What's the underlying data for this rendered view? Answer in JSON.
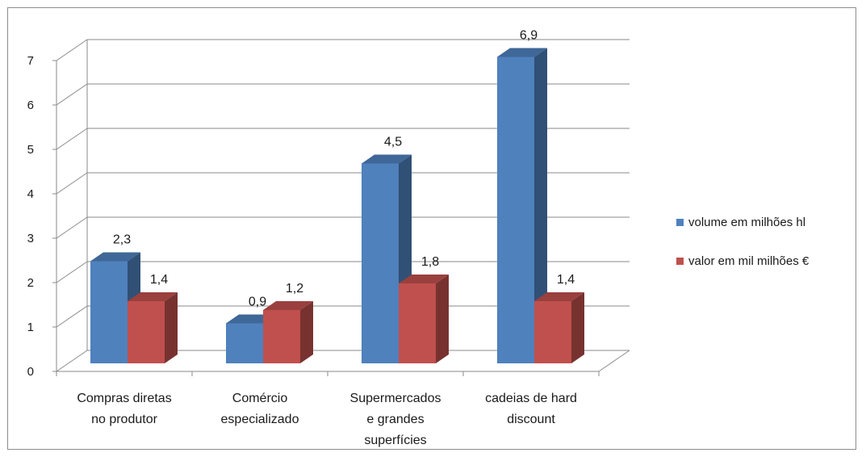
{
  "chart_data": {
    "type": "bar",
    "style": "3d-clustered-column",
    "categories": [
      [
        "Compras diretas",
        "no produtor"
      ],
      [
        "Comércio",
        "especializado"
      ],
      [
        "Supermercados",
        "e grandes",
        "superfícies"
      ],
      [
        "cadeias de hard",
        "discount"
      ]
    ],
    "series": [
      {
        "name": "volume em milhões hl",
        "values": [
          2.3,
          0.9,
          4.5,
          6.9
        ],
        "labels": [
          "2,3",
          "0,9",
          "4,5",
          "6,9"
        ],
        "color": "#4f81bd"
      },
      {
        "name": "valor em mil milhões €",
        "values": [
          1.4,
          1.2,
          1.8,
          1.4
        ],
        "labels": [
          "1,4",
          "1,2",
          "1,8",
          "1,4"
        ],
        "color": "#c0504d"
      }
    ],
    "yticks": [
      "0",
      "1",
      "2",
      "3",
      "4",
      "5",
      "6",
      "7"
    ],
    "ylim": [
      0,
      7
    ],
    "grid": true,
    "legend_position": "right",
    "title": "",
    "xlabel": "",
    "ylabel": ""
  }
}
